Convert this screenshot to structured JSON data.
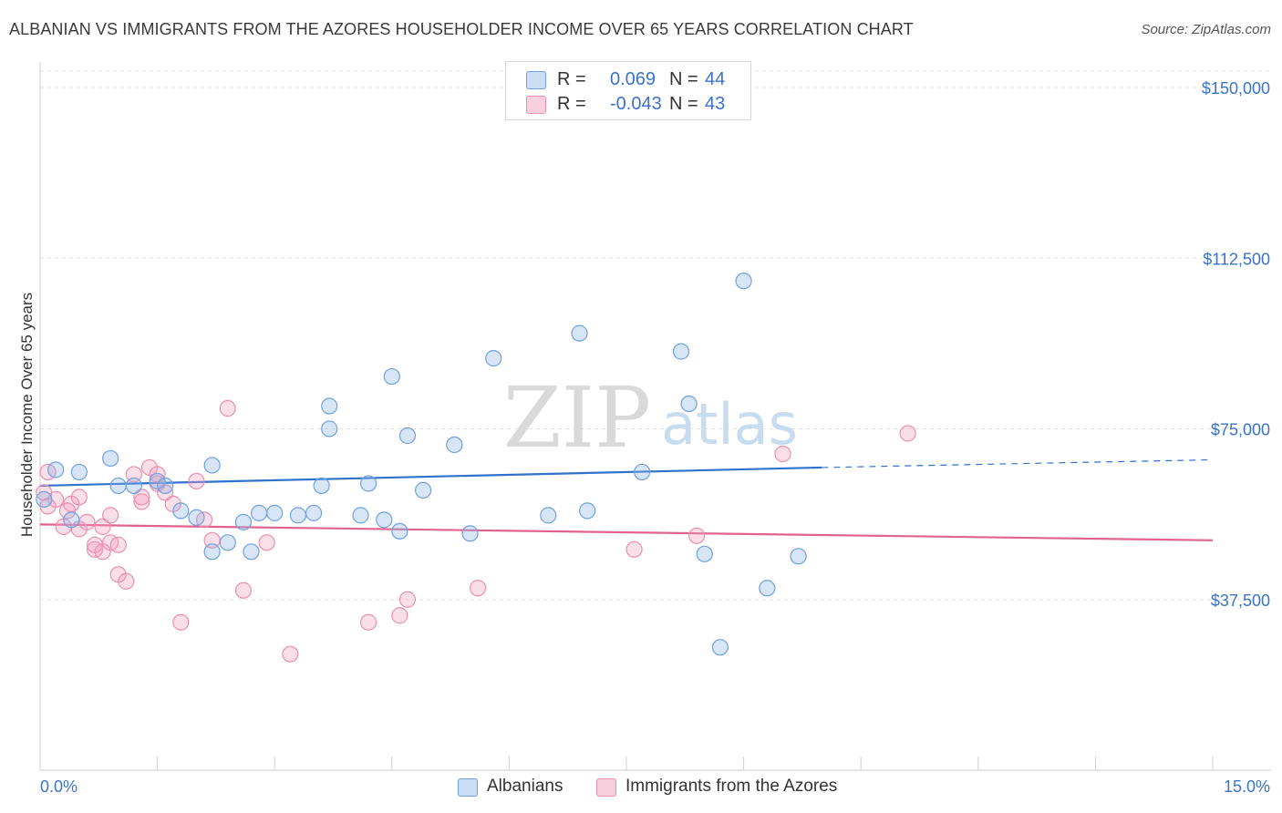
{
  "header": {
    "title": "ALBANIAN VS IMMIGRANTS FROM THE AZORES HOUSEHOLDER INCOME OVER 65 YEARS CORRELATION CHART",
    "source": "Source: ZipAtlas.com"
  },
  "watermark": {
    "zip": "ZIP",
    "atlas": "atlas"
  },
  "legend": {
    "rows": [
      {
        "r_label": "R =",
        "r_value": "0.069",
        "n_label": "N =",
        "n_value": "44"
      },
      {
        "r_label": "R =",
        "r_value": "-0.043",
        "n_label": "N =",
        "n_value": "43"
      }
    ]
  },
  "bottom_legend": {
    "albanians": "Albanians",
    "azores": "Immigrants from the Azores"
  },
  "chart_data": {
    "type": "scatter",
    "ylabel": "Householder Income Over 65 years",
    "x_tick_labels": [
      "0.0%",
      "15.0%"
    ],
    "y_tick_labels": [
      "$150,000",
      "$112,500",
      "$75,000",
      "$37,500"
    ],
    "xlim": [
      0,
      15
    ],
    "ylim": [
      0,
      150000
    ],
    "y_ticks": [
      150000,
      112500,
      75000,
      37500
    ],
    "colors": {
      "albanians": "#6fa1df",
      "azores": "#ec8fb1",
      "blue_line": "#2f72cc",
      "pink_line": "#e2628f",
      "tick_text": "#3a73c9"
    },
    "series": [
      {
        "name": "Albanians",
        "trend": {
          "x0": 0,
          "y0": 62500,
          "x1": 10.0,
          "y1": 66500,
          "dash_x1": 15,
          "dash_y1": 68200
        },
        "points": [
          [
            0.05,
            59500
          ],
          [
            0.2,
            66000
          ],
          [
            0.4,
            55000
          ],
          [
            0.5,
            65500
          ],
          [
            0.9,
            68500
          ],
          [
            1.0,
            62500
          ],
          [
            1.2,
            62500
          ],
          [
            1.5,
            63500
          ],
          [
            1.6,
            62500
          ],
          [
            1.8,
            57000
          ],
          [
            2.0,
            55500
          ],
          [
            2.2,
            67000
          ],
          [
            2.2,
            48000
          ],
          [
            2.4,
            50000
          ],
          [
            2.6,
            54500
          ],
          [
            2.8,
            56500
          ],
          [
            3.0,
            56500
          ],
          [
            3.3,
            56000
          ],
          [
            3.6,
            62500
          ],
          [
            3.7,
            75000
          ],
          [
            3.7,
            80000
          ],
          [
            4.1,
            56000
          ],
          [
            4.2,
            63000
          ],
          [
            4.4,
            55000
          ],
          [
            4.5,
            86500
          ],
          [
            4.6,
            52500
          ],
          [
            4.7,
            73500
          ],
          [
            4.9,
            61500
          ],
          [
            5.3,
            71500
          ],
          [
            5.5,
            52000
          ],
          [
            5.8,
            90500
          ],
          [
            6.5,
            56000
          ],
          [
            6.9,
            96000
          ],
          [
            7.0,
            57000
          ],
          [
            7.7,
            65500
          ],
          [
            8.2,
            92000
          ],
          [
            8.3,
            80500
          ],
          [
            8.5,
            47500
          ],
          [
            9.0,
            107500
          ],
          [
            9.3,
            40000
          ],
          [
            9.7,
            47000
          ],
          [
            8.7,
            27000
          ],
          [
            2.7,
            48000
          ],
          [
            3.5,
            56500
          ]
        ]
      },
      {
        "name": "Immigrants from the Azores",
        "trend": {
          "x0": 0,
          "y0": 54000,
          "x1": 15,
          "y1": 50500
        },
        "points": [
          [
            0.05,
            61000
          ],
          [
            0.1,
            65500
          ],
          [
            0.2,
            59500
          ],
          [
            0.3,
            53500
          ],
          [
            0.4,
            58500
          ],
          [
            0.5,
            53000
          ],
          [
            0.5,
            60000
          ],
          [
            0.6,
            54500
          ],
          [
            0.7,
            48500
          ],
          [
            0.7,
            49500
          ],
          [
            0.8,
            53500
          ],
          [
            0.9,
            56000
          ],
          [
            0.9,
            50000
          ],
          [
            1.0,
            43000
          ],
          [
            1.0,
            49500
          ],
          [
            1.1,
            41500
          ],
          [
            1.2,
            65000
          ],
          [
            1.3,
            59000
          ],
          [
            1.4,
            66500
          ],
          [
            1.5,
            63000
          ],
          [
            1.5,
            65000
          ],
          [
            1.6,
            61000
          ],
          [
            1.7,
            58500
          ],
          [
            1.8,
            32500
          ],
          [
            2.0,
            63500
          ],
          [
            2.1,
            55000
          ],
          [
            2.2,
            50500
          ],
          [
            2.4,
            79500
          ],
          [
            2.6,
            39500
          ],
          [
            2.9,
            50000
          ],
          [
            3.2,
            25500
          ],
          [
            4.2,
            32500
          ],
          [
            4.6,
            34000
          ],
          [
            4.7,
            37500
          ],
          [
            5.6,
            40000
          ],
          [
            7.6,
            48500
          ],
          [
            8.4,
            51500
          ],
          [
            9.5,
            69500
          ],
          [
            11.1,
            74000
          ],
          [
            0.1,
            58000
          ],
          [
            1.3,
            60000
          ],
          [
            0.35,
            57000
          ],
          [
            0.8,
            48000
          ]
        ]
      }
    ]
  }
}
